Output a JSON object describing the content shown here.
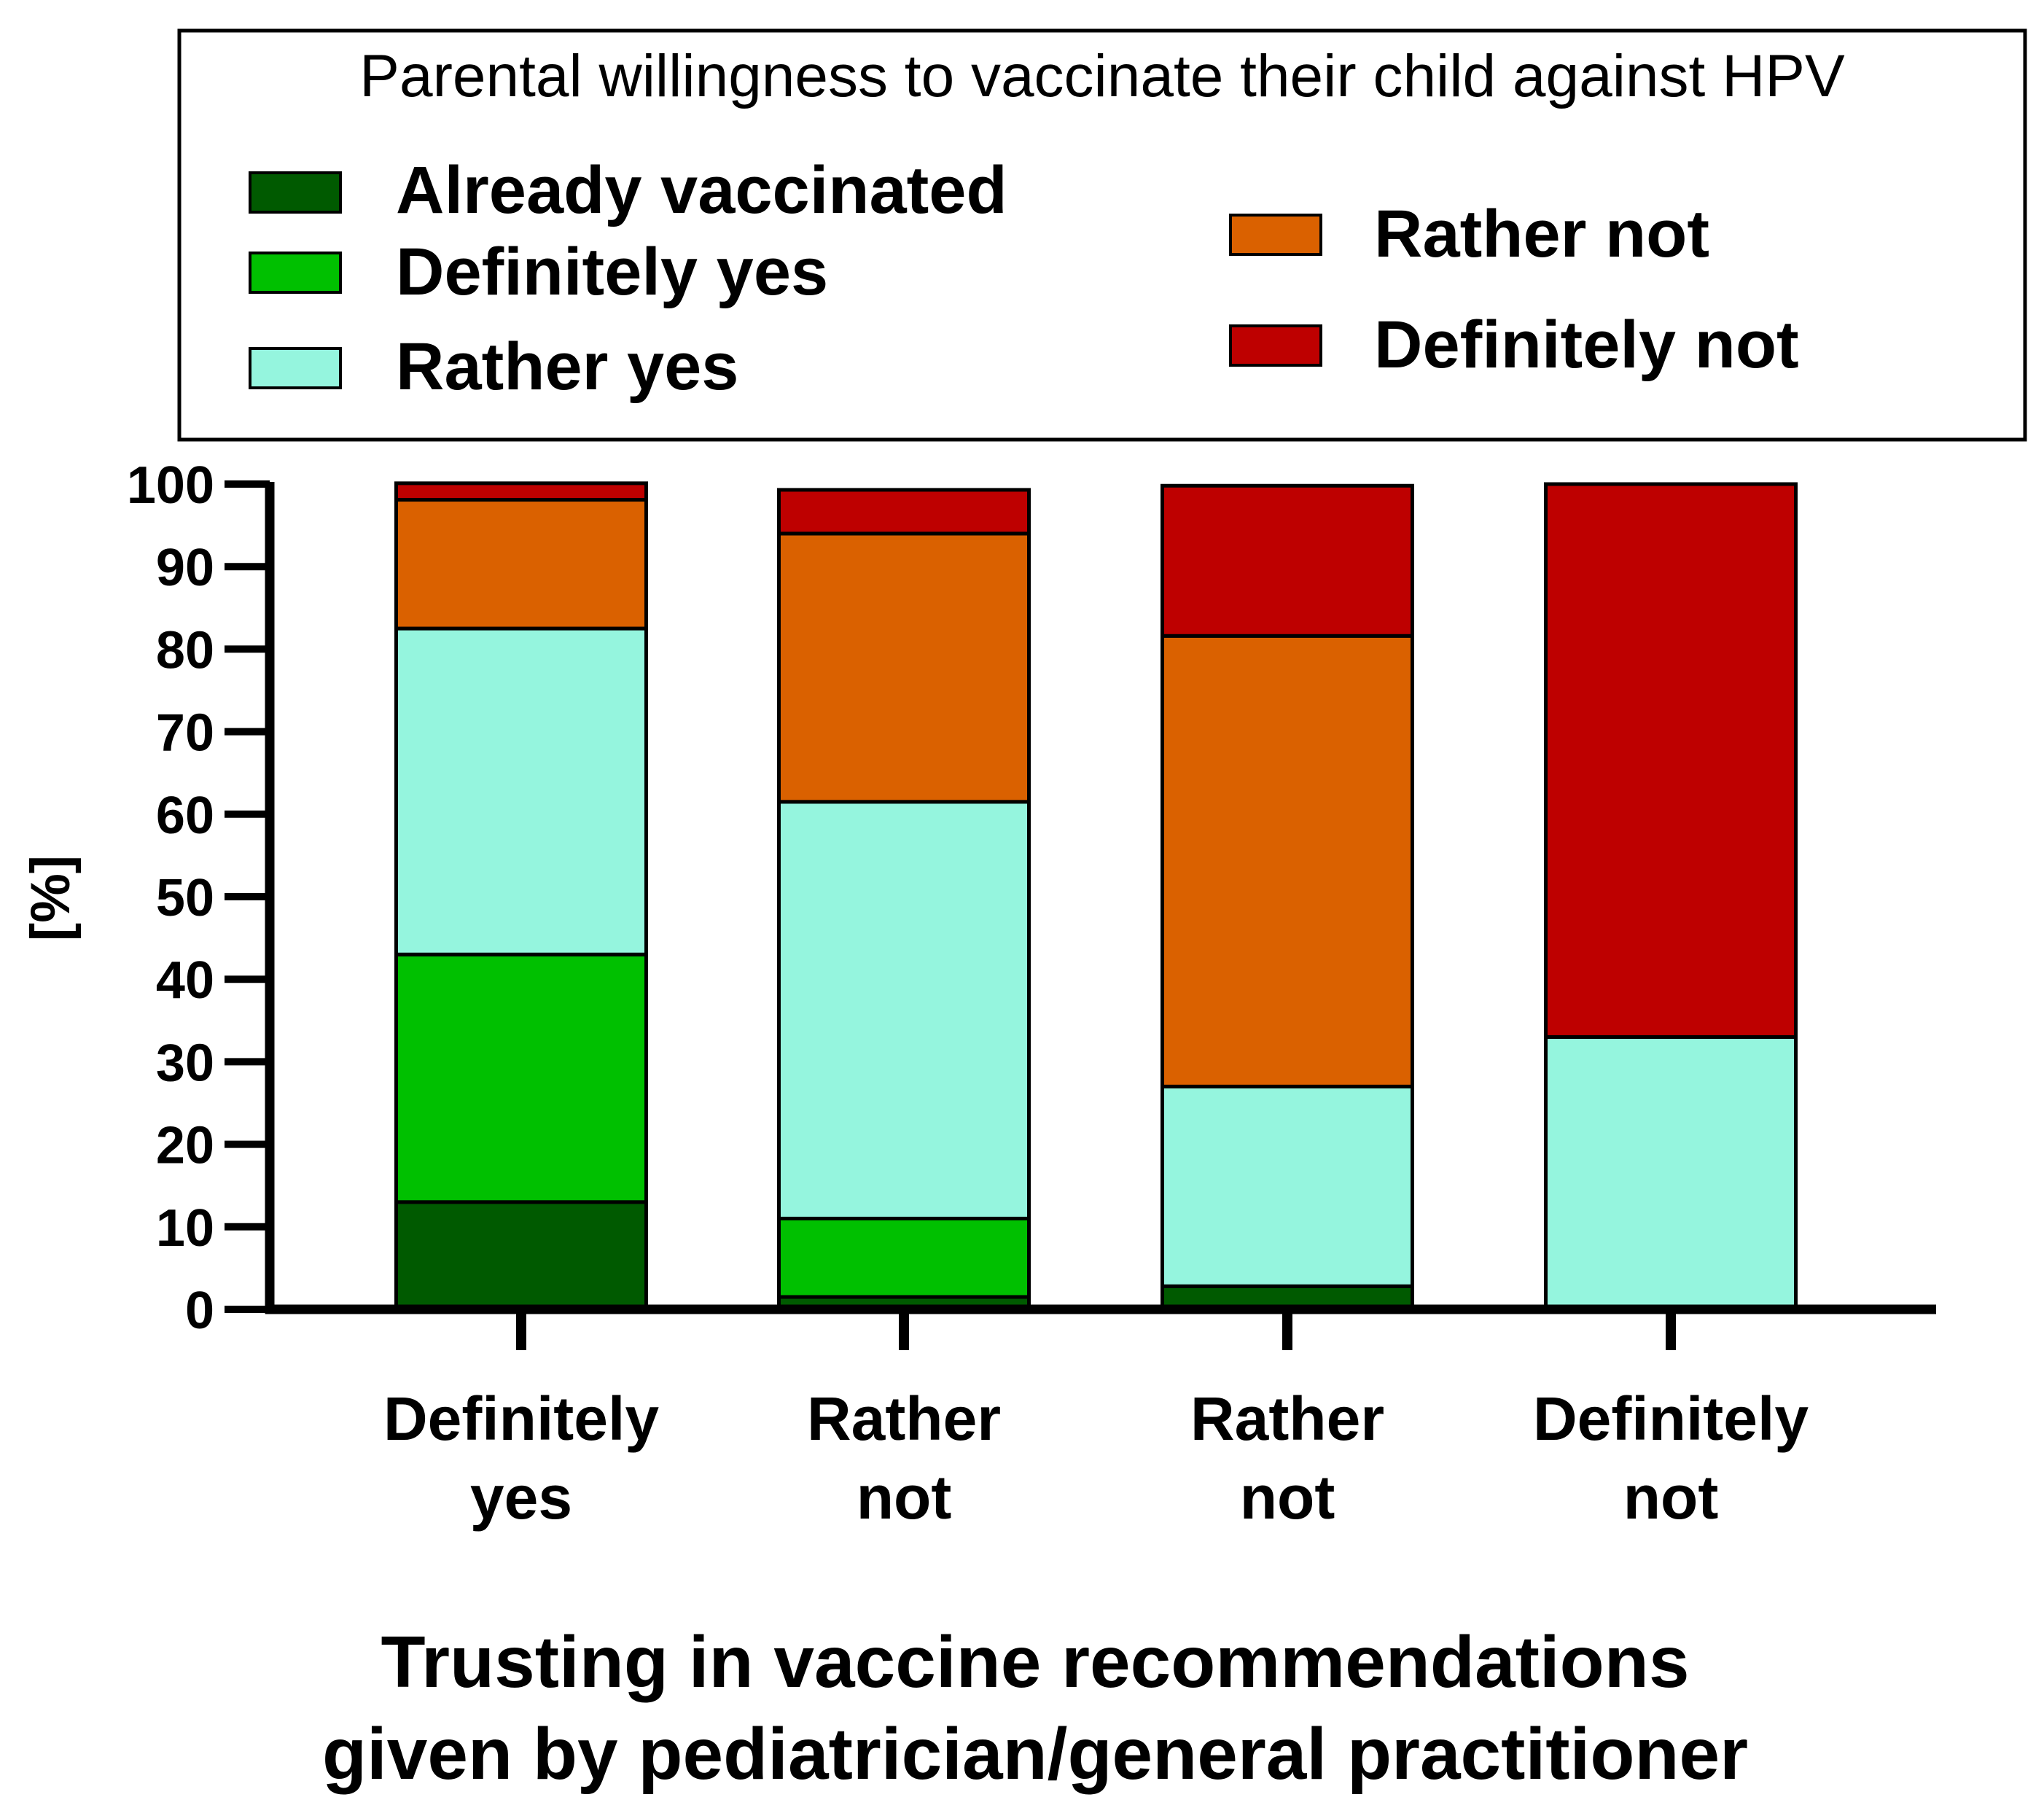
{
  "chart_data": {
    "type": "bar",
    "stacked": true,
    "legend": {
      "title": "Parental willingness to vaccinate their child against HPV",
      "placement": "top"
    },
    "categories": [
      [
        "Definitely",
        "yes"
      ],
      [
        "Rather",
        "not"
      ],
      [
        "Rather",
        "not"
      ],
      [
        "Definitely",
        "not"
      ]
    ],
    "series": [
      {
        "name": "Already vaccinated",
        "color": "#005A00",
        "values": [
          13,
          1.5,
          2.8,
          0
        ]
      },
      {
        "name": "Definitely yes",
        "color": "#00C000",
        "values": [
          30,
          9.5,
          0,
          0
        ]
      },
      {
        "name": "Rather yes",
        "color": "#95F5DE",
        "values": [
          39.5,
          50.5,
          24.2,
          33
        ]
      },
      {
        "name": "Rather not",
        "color": "#DA6100",
        "values": [
          15.6,
          32.5,
          54.6,
          0
        ]
      },
      {
        "name": "Definitely not",
        "color": "#BE0000",
        "values": [
          2,
          5.3,
          18.2,
          67
        ]
      }
    ],
    "ylabel": "[%]",
    "xlabel": [
      "Trusting in vaccine recommendations",
      "given by pediatrician/general practitioner"
    ],
    "ylim": [
      0,
      100
    ],
    "yticks": [
      "0",
      "10",
      "20",
      "30",
      "40",
      "50",
      "60",
      "70",
      "80",
      "90",
      "100"
    ],
    "grid": false
  }
}
